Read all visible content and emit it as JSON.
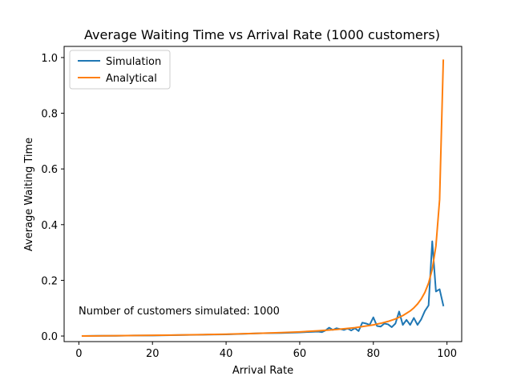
{
  "chart_data": {
    "type": "line",
    "title": "Average Waiting Time vs Arrival Rate (1000 customers)",
    "xlabel": "Arrival Rate",
    "ylabel": "Average Waiting Time",
    "xlim": [
      -4,
      104
    ],
    "ylim": [
      -0.02,
      1.04
    ],
    "xticks": [
      0,
      20,
      40,
      60,
      80,
      100
    ],
    "yticks": [
      0.0,
      0.2,
      0.4,
      0.6,
      0.8,
      1.0
    ],
    "grid": false,
    "legend_position": "upper left",
    "annotation": "Number of customers simulated: 1000",
    "series": [
      {
        "name": "Simulation",
        "color": "#1f77b4",
        "x": [
          1,
          5,
          10,
          15,
          20,
          25,
          30,
          35,
          40,
          45,
          50,
          55,
          60,
          63,
          65,
          66,
          67,
          68,
          69,
          70,
          71,
          72,
          73,
          74,
          75,
          76,
          77,
          78,
          79,
          80,
          81,
          82,
          83,
          84,
          85,
          86,
          87,
          88,
          89,
          90,
          91,
          92,
          93,
          94,
          95,
          96,
          97,
          98,
          99
        ],
        "y": [
          0.0,
          0.001,
          0.001,
          0.002,
          0.002,
          0.003,
          0.004,
          0.005,
          0.006,
          0.008,
          0.01,
          0.011,
          0.013,
          0.015,
          0.016,
          0.014,
          0.02,
          0.03,
          0.022,
          0.028,
          0.025,
          0.022,
          0.027,
          0.02,
          0.028,
          0.018,
          0.048,
          0.045,
          0.04,
          0.067,
          0.036,
          0.034,
          0.045,
          0.042,
          0.032,
          0.045,
          0.088,
          0.04,
          0.058,
          0.04,
          0.065,
          0.04,
          0.06,
          0.09,
          0.11,
          0.34,
          0.16,
          0.168,
          0.11
        ]
      },
      {
        "name": "Analytical",
        "color": "#ff7f0e",
        "x": [
          1,
          5,
          10,
          15,
          20,
          25,
          30,
          35,
          40,
          45,
          50,
          55,
          60,
          65,
          70,
          75,
          80,
          82,
          84,
          86,
          88,
          90,
          91,
          92,
          93,
          94,
          95,
          96,
          97,
          98,
          99
        ],
        "y": [
          0.0001,
          0.0005,
          0.0011,
          0.0018,
          0.0025,
          0.0033,
          0.0043,
          0.0054,
          0.0067,
          0.0082,
          0.01,
          0.0122,
          0.015,
          0.0186,
          0.0233,
          0.03,
          0.04,
          0.0456,
          0.0525,
          0.0614,
          0.0733,
          0.09,
          0.1011,
          0.115,
          0.1329,
          0.1567,
          0.19,
          0.24,
          0.3233,
          0.49,
          0.99
        ]
      }
    ]
  }
}
